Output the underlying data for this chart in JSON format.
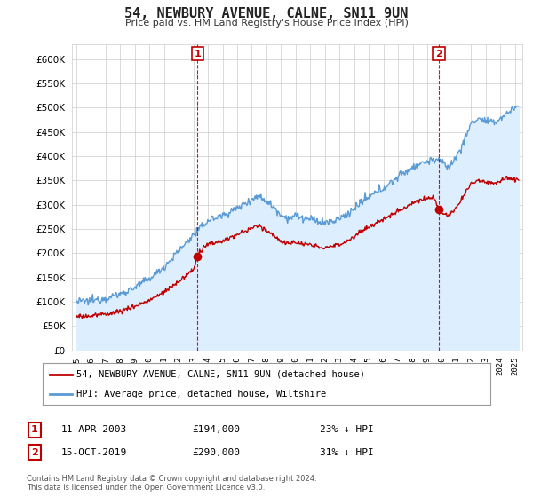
{
  "title": "54, NEWBURY AVENUE, CALNE, SN11 9UN",
  "subtitle": "Price paid vs. HM Land Registry's House Price Index (HPI)",
  "ytick_values": [
    0,
    50000,
    100000,
    150000,
    200000,
    250000,
    300000,
    350000,
    400000,
    450000,
    500000,
    550000,
    600000
  ],
  "ylim": [
    0,
    630000
  ],
  "xlim_start": 1994.7,
  "xlim_end": 2025.5,
  "hpi_color": "#5b9bd5",
  "price_color": "#c00000",
  "hpi_fill_color": "#ddeeff",
  "marker1_x": 2003.28,
  "marker1_y": 194000,
  "marker2_x": 2019.79,
  "marker2_y": 290000,
  "vline1_x": 2003.28,
  "vline2_x": 2019.79,
  "legend_label1": "54, NEWBURY AVENUE, CALNE, SN11 9UN (detached house)",
  "legend_label2": "HPI: Average price, detached house, Wiltshire",
  "annotation1_date": "11-APR-2003",
  "annotation1_price": "£194,000",
  "annotation1_hpi": "23% ↓ HPI",
  "annotation2_date": "15-OCT-2019",
  "annotation2_price": "£290,000",
  "annotation2_hpi": "31% ↓ HPI",
  "footer": "Contains HM Land Registry data © Crown copyright and database right 2024.\nThis data is licensed under the Open Government Licence v3.0.",
  "background_color": "#ffffff",
  "plot_bg_color": "#ffffff"
}
